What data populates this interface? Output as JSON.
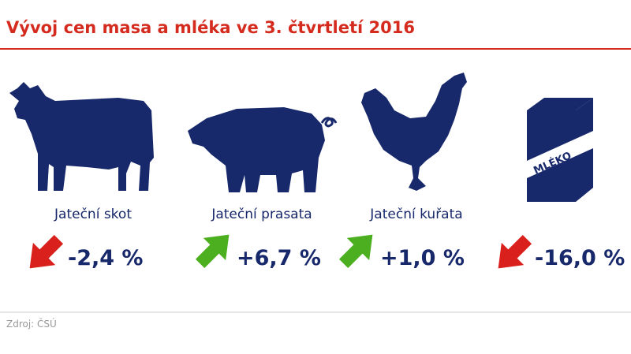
{
  "header": {
    "title": "Vývoj cen masa a mléka ve 3. čtvrtletí 2016"
  },
  "items": [
    {
      "label": "Jateční skot",
      "change": "-2,4 %"
    },
    {
      "label": "Jateční prasata",
      "change": "+6,7 %"
    },
    {
      "label": "Jateční kuřata",
      "change": "+1,0 %"
    },
    {
      "label": null,
      "change": "-16,0 %"
    }
  ],
  "milk_box_label": "MLÉKO",
  "footer": {
    "source": "Zdroj: ČSÚ"
  }
}
